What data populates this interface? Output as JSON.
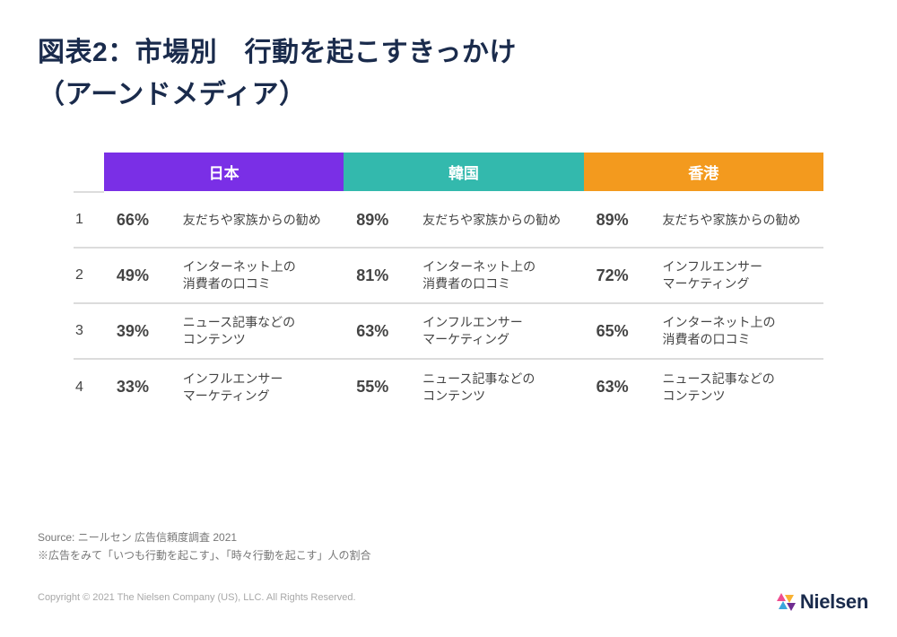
{
  "title_line1": "図表2：市場別　行動を起こすきっかけ",
  "title_line2": "（アーンドメディア）",
  "table": {
    "markets": [
      {
        "name": "日本",
        "header_bg": "#7a2fe6"
      },
      {
        "name": "韓国",
        "header_bg": "#33b9ad"
      },
      {
        "name": "香港",
        "header_bg": "#f39a1e"
      }
    ],
    "rows": [
      {
        "rank": "1",
        "cells": [
          {
            "pct": "66%",
            "label": "友だちや家族からの勧め"
          },
          {
            "pct": "89%",
            "label": "友だちや家族からの勧め"
          },
          {
            "pct": "89%",
            "label": "友だちや家族からの勧め"
          }
        ]
      },
      {
        "rank": "2",
        "cells": [
          {
            "pct": "49%",
            "label": "インターネット上の\n消費者の口コミ"
          },
          {
            "pct": "81%",
            "label": "インターネット上の\n消費者の口コミ"
          },
          {
            "pct": "72%",
            "label": "インフルエンサー\nマーケティング"
          }
        ]
      },
      {
        "rank": "3",
        "cells": [
          {
            "pct": "39%",
            "label": "ニュース記事などの\nコンテンツ"
          },
          {
            "pct": "63%",
            "label": "インフルエンサー\nマーケティング"
          },
          {
            "pct": "65%",
            "label": "インターネット上の\n消費者の口コミ"
          }
        ]
      },
      {
        "rank": "4",
        "cells": [
          {
            "pct": "33%",
            "label": "インフルエンサー\nマーケティング"
          },
          {
            "pct": "55%",
            "label": "ニュース記事などの\nコンテンツ"
          },
          {
            "pct": "63%",
            "label": "ニュース記事などの\nコンテンツ"
          }
        ]
      }
    ]
  },
  "source_line1": "Source: ニールセン 広告信頼度調査 2021",
  "source_line2": "※広告をみて「いつも行動を起こす」、「時々行動を起こす」人の割合",
  "copyright": "Copyright © 2021 The Nielsen Company (US), LLC. All Rights Reserved.",
  "logo_text": "Nielsen",
  "logo_colors": {
    "a": "#ef4d8f",
    "b": "#f9b233",
    "c": "#3aa6dd",
    "d": "#6f2c91"
  }
}
